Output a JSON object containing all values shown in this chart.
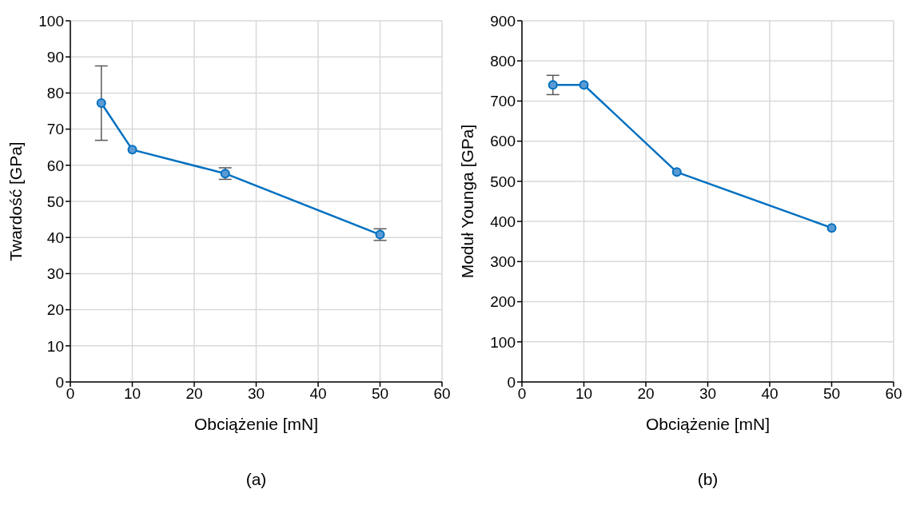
{
  "chart_data": [
    {
      "type": "line",
      "xlabel": "Obciążenie [mN]",
      "ylabel": "Twardość [GPa]",
      "annotations": [
        "(a)"
      ],
      "x": [
        5,
        10,
        25,
        50
      ],
      "series": [
        {
          "color": "#0070c0",
          "values": [
            77.2,
            64.3,
            57.7,
            40.8
          ],
          "errors": [
            10.3,
            null,
            1.6,
            1.6
          ]
        }
      ],
      "xlim": [
        0,
        60
      ],
      "xticks": [
        0,
        10,
        20,
        30,
        40,
        50,
        60
      ],
      "ylim": [
        0,
        100
      ],
      "yticks": [
        0,
        10,
        20,
        30,
        40,
        50,
        60,
        70,
        80,
        90,
        100
      ],
      "grid": true,
      "marker": "circle",
      "line_style": "solid"
    },
    {
      "type": "line",
      "xlabel": "Obciążenie [mN]",
      "ylabel": "Moduł Younga [GPa]",
      "annotations": [
        "(b)"
      ],
      "x": [
        5,
        10,
        25,
        50
      ],
      "series": [
        {
          "color": "#0070c0",
          "values": [
            740,
            740,
            523,
            384
          ],
          "errors": [
            24,
            null,
            null,
            null
          ]
        }
      ],
      "xlim": [
        0,
        60
      ],
      "xticks": [
        0,
        10,
        20,
        30,
        40,
        50,
        60
      ],
      "ylim": [
        0,
        900
      ],
      "yticks": [
        0,
        100,
        200,
        300,
        400,
        500,
        600,
        700,
        800,
        900
      ],
      "grid": true,
      "marker": "circle",
      "line_style": "solid"
    }
  ]
}
